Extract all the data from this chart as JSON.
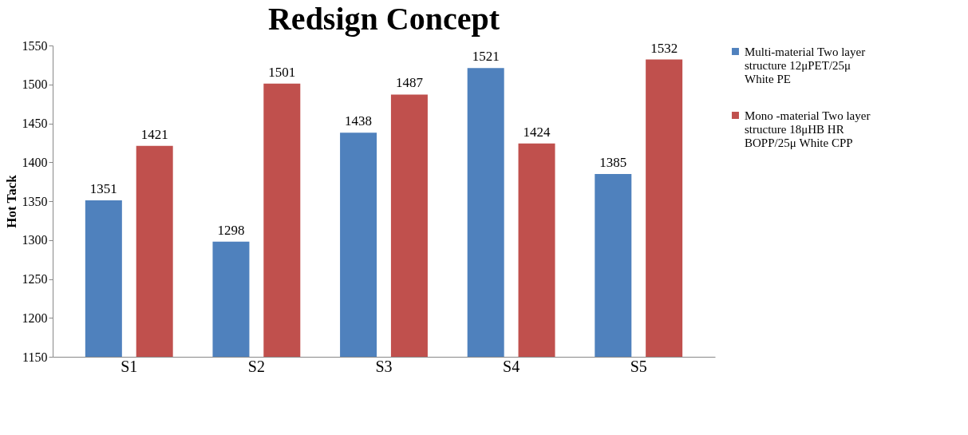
{
  "chart_data": {
    "type": "bar",
    "title": "Redsign Concept",
    "ylabel": "Hot Tack",
    "categories": [
      "S1",
      "S2",
      "S3",
      "S4",
      "S5"
    ],
    "series": [
      {
        "name": "Multi-material Two layer structure 12μPET/25μ White PE",
        "color": "#4f81bd",
        "values": [
          1351,
          1298,
          1438,
          1521,
          1385
        ]
      },
      {
        "name": "Mono -material Two layer structure 18μHB HR BOPP/25μ White CPP",
        "color": "#c0504d",
        "values": [
          1421,
          1501,
          1487,
          1424,
          1532
        ]
      }
    ],
    "ylim": [
      1150,
      1550
    ],
    "yticks": [
      1150,
      1200,
      1250,
      1300,
      1350,
      1400,
      1450,
      1500,
      1550
    ],
    "data_labels": true,
    "grid": false,
    "legend": "right"
  }
}
